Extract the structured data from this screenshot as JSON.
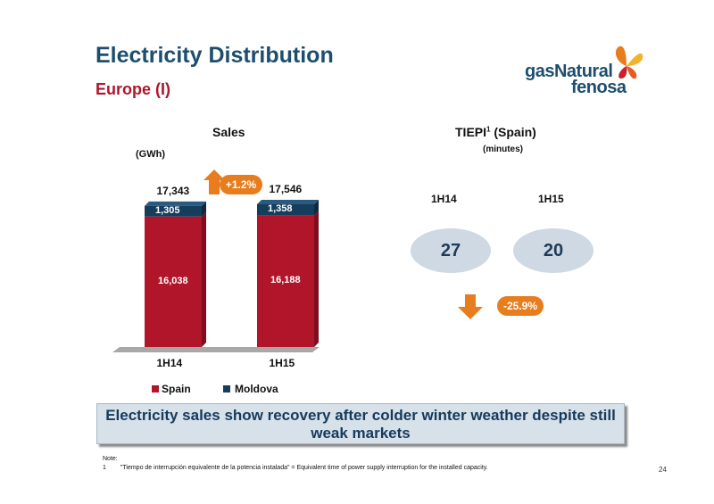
{
  "slide": {
    "title": "Electricity Distribution",
    "subtitle": "Europe (I)",
    "logo": {
      "line1": "gasNatural",
      "line2": "fenosa"
    },
    "page_number": "24"
  },
  "sales": {
    "header": "Sales",
    "unit": "(GWh)",
    "growth_badge": "+1.2%",
    "totals": [
      "17,343",
      "17,546"
    ],
    "segment_labels": {
      "spain": [
        "16,038",
        "16,188"
      ],
      "moldova": [
        "1,305",
        "1,358"
      ]
    },
    "legend": {
      "spain": "Spain",
      "moldova": "Moldova"
    }
  },
  "tiepi": {
    "header_main": "TIEPI",
    "header_sup": "1",
    "header_rest": " (Spain)",
    "unit": "(minutes)",
    "periods": [
      "1H14",
      "1H15"
    ],
    "values": [
      "27",
      "20"
    ],
    "change_badge": "-25.9%"
  },
  "banner": {
    "text": "Electricity sales show recovery after colder winter weather despite still weak markets"
  },
  "note": {
    "title": "Note:",
    "line1_num": "1",
    "line1_text": "\"Tiempo de interrupción equivalente de la potencia instalada\" = Equivalent time of power supply interruption for the installed capacity."
  },
  "colors": {
    "spain": "#b0152a",
    "moldova": "#163e5c",
    "accent_orange": "#e87d1e",
    "title_blue": "#1d4e6e",
    "ellipse_fill": "#cfd9e3",
    "banner_fill": "#d7e1ea"
  },
  "chart_data": [
    {
      "type": "bar",
      "stacked": true,
      "title": "Sales",
      "ylabel": "(GWh)",
      "categories": [
        "1H14",
        "1H15"
      ],
      "series": [
        {
          "name": "Spain",
          "values": [
            16038,
            16188
          ]
        },
        {
          "name": "Moldova",
          "values": [
            1305,
            1358
          ]
        }
      ],
      "totals": [
        17343,
        17546
      ],
      "annotation": "+1.2%",
      "ylim": [
        0,
        17546
      ],
      "legend": "bottom"
    },
    {
      "type": "table",
      "title": "TIEPI1 (Spain)",
      "ylabel": "(minutes)",
      "categories": [
        "1H14",
        "1H15"
      ],
      "values": [
        27,
        20
      ],
      "annotation": "-25.9%"
    }
  ]
}
